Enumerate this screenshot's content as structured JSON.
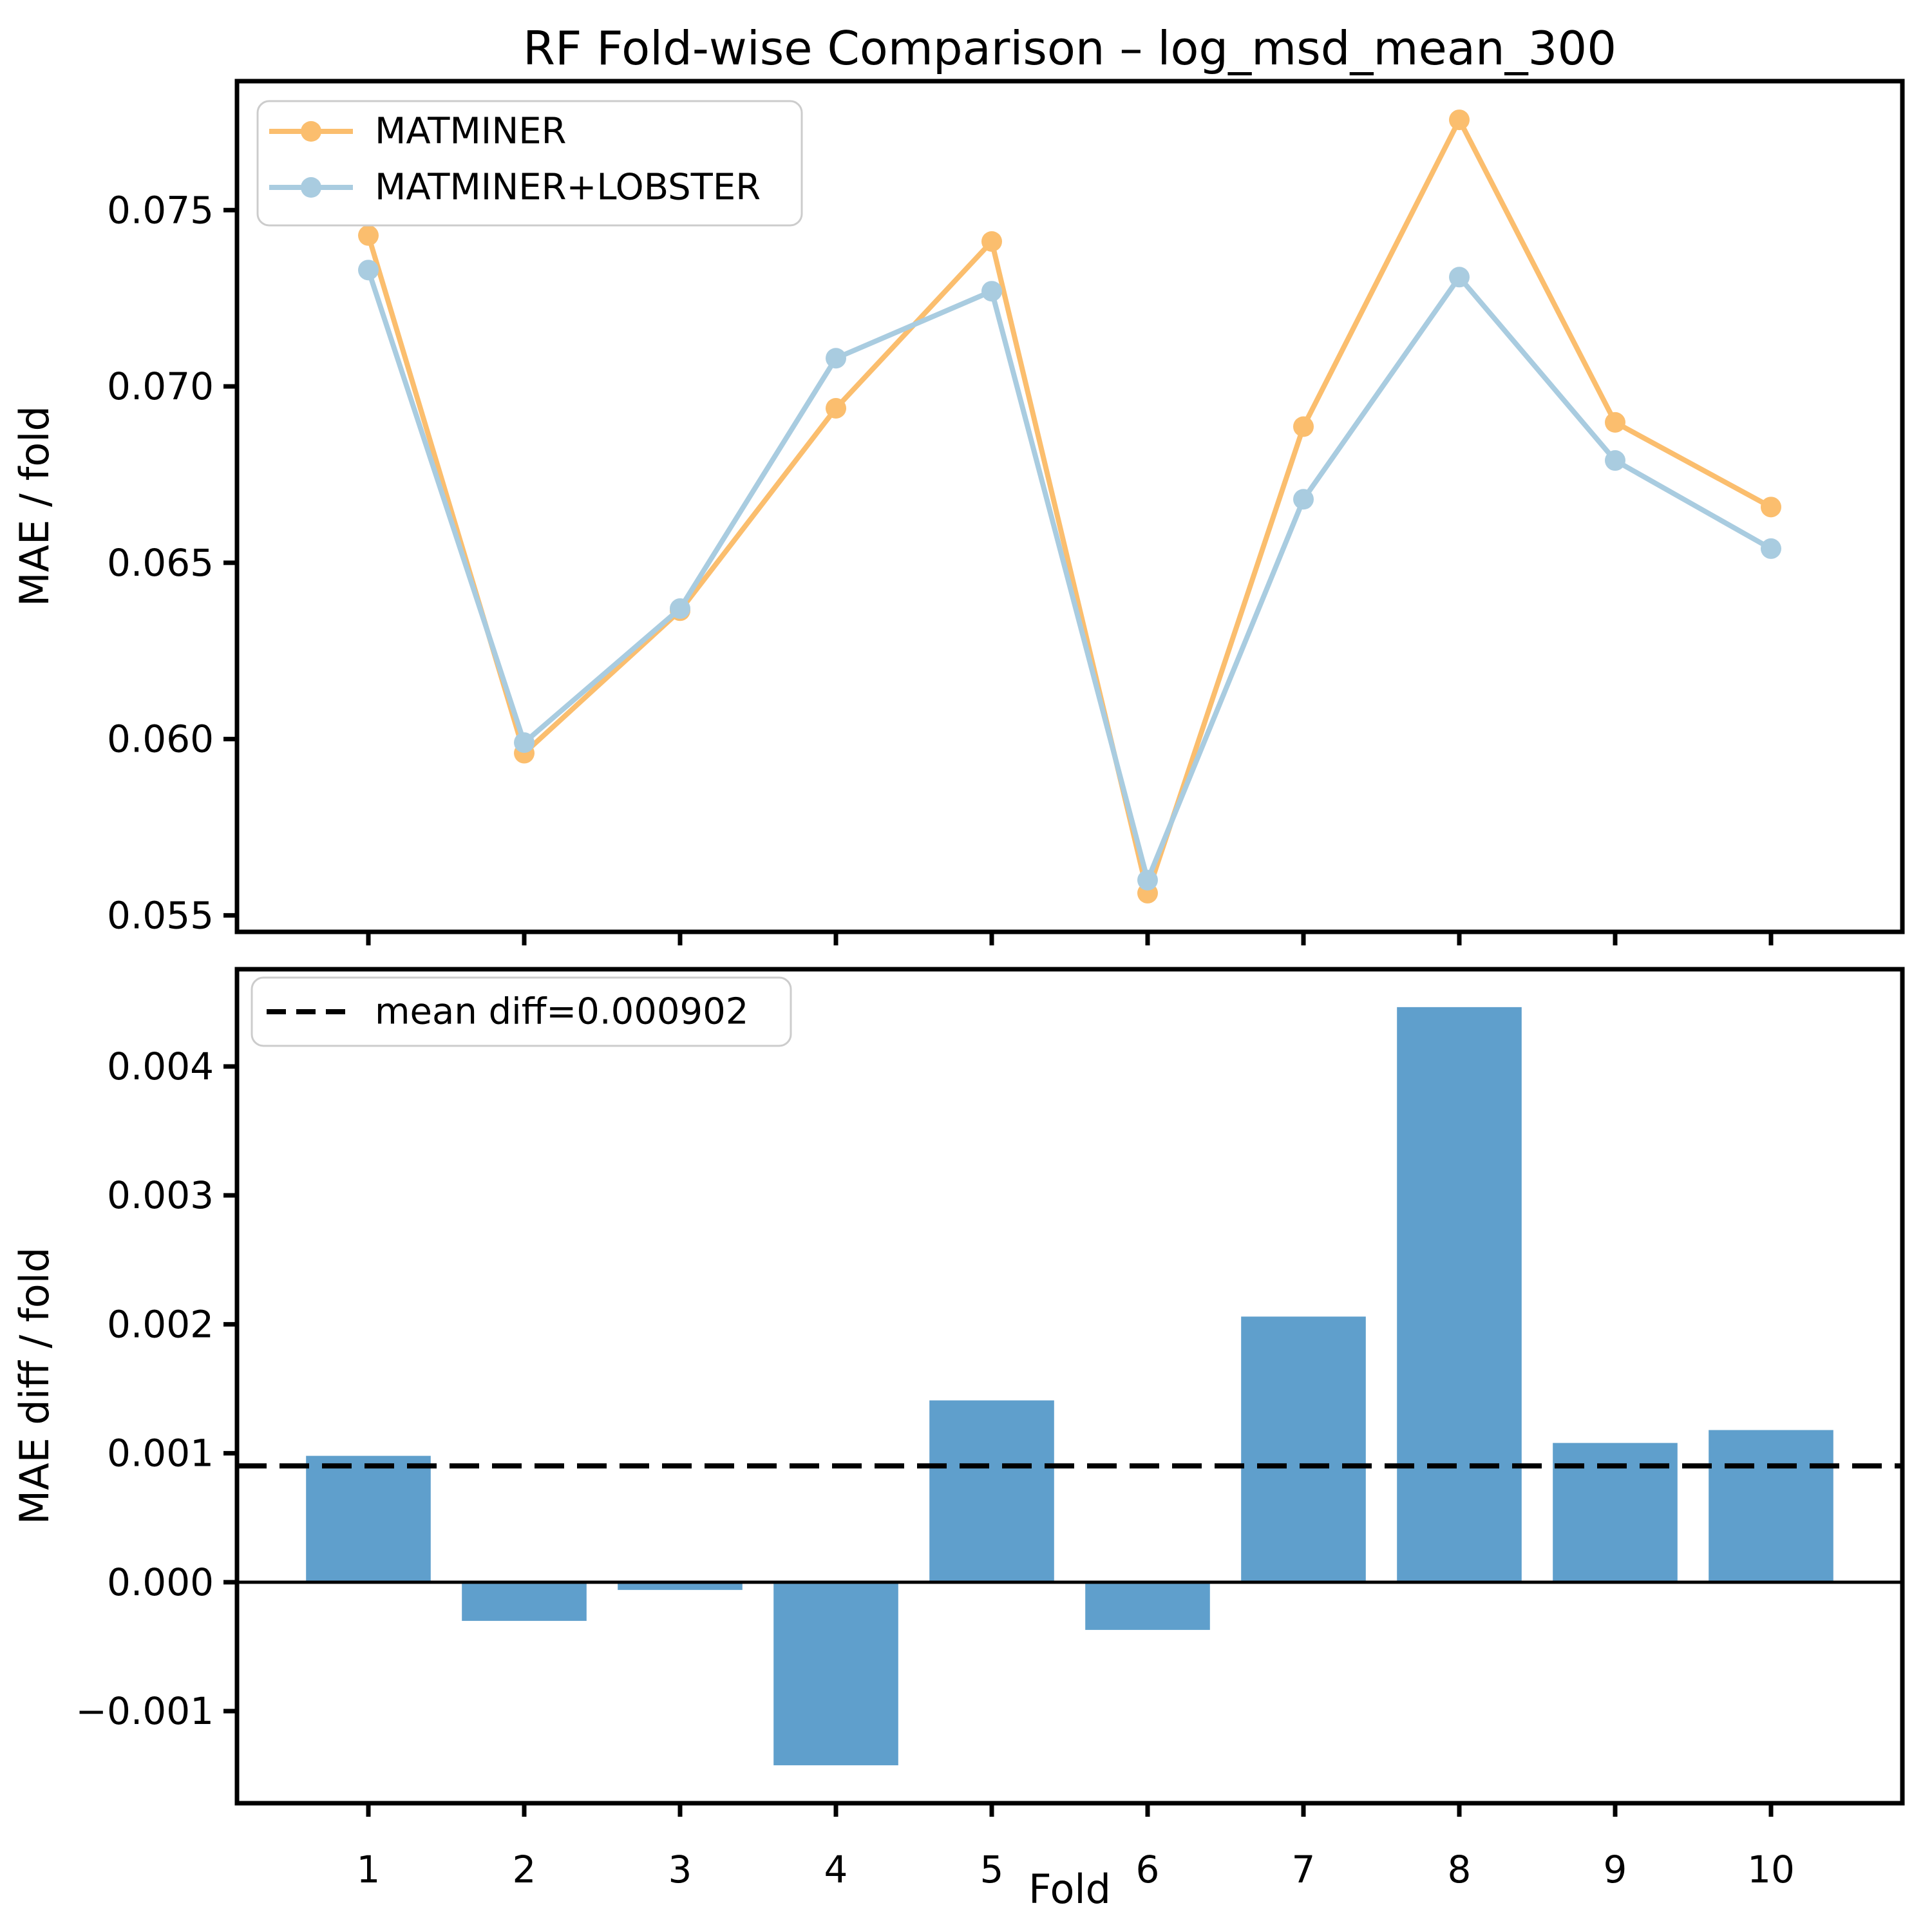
{
  "title": "RF Fold-wise Comparison – log_msd_mean_300",
  "chart_data": [
    {
      "type": "line",
      "title": "RF Fold-wise Comparison – log_msd_mean_300",
      "x": [
        1,
        2,
        3,
        4,
        5,
        6,
        7,
        8,
        9,
        10
      ],
      "series": [
        {
          "name": "MATMINER",
          "color": "#FBBE6E",
          "values": [
            0.07428,
            0.0596,
            0.06364,
            0.06938,
            0.07411,
            0.05563,
            0.06886,
            0.07756,
            0.06898,
            0.06658
          ]
        },
        {
          "name": "MATMINER+LOBSTER",
          "color": "#A9CCE0",
          "values": [
            0.0733,
            0.0599,
            0.0637,
            0.0708,
            0.0727,
            0.056,
            0.0668,
            0.0731,
            0.0679,
            0.0654
          ]
        }
      ],
      "ylabel": "MAE / fold",
      "yticks": [
        0.055,
        0.06,
        0.065,
        0.07,
        0.075
      ],
      "ytick_labels": [
        "0.055",
        "0.060",
        "0.065",
        "0.070",
        "0.075"
      ],
      "ylim": [
        0.054533,
        0.078657
      ],
      "xlim": [
        0.157,
        10.843
      ],
      "grid": false,
      "legend_position": "upper-left",
      "marker": "circle"
    },
    {
      "type": "bar",
      "x": [
        1,
        2,
        3,
        4,
        5,
        6,
        7,
        8,
        9,
        10
      ],
      "values": [
        0.00098,
        -0.0003,
        -6e-05,
        -0.00142,
        0.00141,
        -0.00037,
        0.00206,
        0.00446,
        0.00108,
        0.00118
      ],
      "bar_color": "#5F9FCC",
      "mean_diff": 0.000902,
      "legend_label": "mean diff=0.000902",
      "xlabel": "Fold",
      "ylabel": "MAE diff / fold",
      "xtick_labels": [
        "1",
        "2",
        "3",
        "4",
        "5",
        "6",
        "7",
        "8",
        "9",
        "10"
      ],
      "yticks": [
        -0.001,
        0.0,
        0.001,
        0.002,
        0.003,
        0.004
      ],
      "ytick_labels": [
        "−0.001",
        "0.000",
        "0.001",
        "0.002",
        "0.003",
        "0.004"
      ],
      "ylim": [
        -0.001714,
        0.004754
      ],
      "xlim": [
        0.157,
        10.843
      ],
      "grid": false,
      "legend_position": "upper-left",
      "zero_line_color": "#000000",
      "mean_line_color": "#000000",
      "mean_line_style": "dashed"
    }
  ]
}
